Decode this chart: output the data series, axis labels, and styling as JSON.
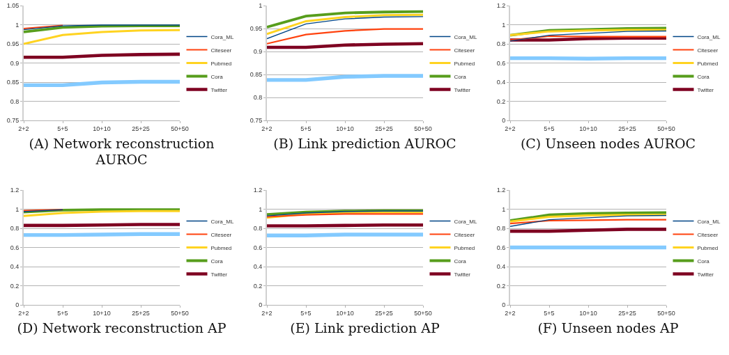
{
  "chart_data": [
    {
      "type": "line",
      "title": "(A) Network reconstruction AUROC",
      "categories": [
        "2+2",
        "5+5",
        "10+10",
        "25+25",
        "50+50"
      ],
      "ylim": [
        0.75,
        1.05
      ],
      "yticks": [
        0.75,
        0.8,
        0.85,
        0.9,
        0.95,
        1,
        1.05
      ],
      "grid": "y",
      "legend": "right",
      "series": [
        {
          "name": "Cora_ML",
          "color": "#004586",
          "values": [
            0.987,
            0.997,
            0.999,
            0.999,
            0.999
          ]
        },
        {
          "name": "Citeseer",
          "color": "#ff420e",
          "values": [
            0.99,
            0.998,
            null,
            null,
            null
          ]
        },
        {
          "name": "Pubmed",
          "color": "#ffd320",
          "values": [
            0.95,
            0.973,
            0.981,
            0.985,
            0.986
          ]
        },
        {
          "name": "Cora",
          "color": "#579d1c",
          "values": [
            0.981,
            0.993,
            0.996,
            0.997,
            0.997
          ]
        },
        {
          "name": "Twitter",
          "color": "#7e0021",
          "values": [
            0.915,
            0.915,
            0.92,
            0.922,
            0.923
          ]
        },
        {
          "color": "#83caff",
          "values": [
            0.842,
            0.842,
            0.849,
            0.851,
            0.851
          ]
        }
      ]
    },
    {
      "type": "line",
      "title": "(B) Link prediction AUROC",
      "categories": [
        "2+2",
        "5+5",
        "10+10",
        "25+25",
        "50+50"
      ],
      "ylim": [
        0.75,
        1
      ],
      "yticks": [
        0.75,
        0.8,
        0.85,
        0.9,
        0.95,
        1
      ],
      "grid": "y",
      "legend": "right",
      "series": [
        {
          "name": "Cora_ML",
          "color": "#004586",
          "values": [
            0.928,
            0.96,
            0.971,
            0.975,
            0.976
          ]
        },
        {
          "name": "Citeseer",
          "color": "#ff420e",
          "values": [
            0.917,
            0.937,
            0.945,
            0.949,
            0.949
          ]
        },
        {
          "name": "Pubmed",
          "color": "#ffd320",
          "values": [
            0.938,
            0.966,
            0.975,
            0.979,
            0.98
          ]
        },
        {
          "name": "Cora",
          "color": "#579d1c",
          "values": [
            0.953,
            0.977,
            0.984,
            0.986,
            0.987
          ]
        },
        {
          "name": "Twitter",
          "color": "#7e0021",
          "values": [
            0.909,
            0.909,
            0.914,
            0.916,
            0.917
          ]
        },
        {
          "color": "#83caff",
          "values": [
            0.838,
            0.838,
            0.845,
            0.847,
            0.847
          ]
        }
      ]
    },
    {
      "type": "line",
      "title": "(C) Unseen nodes AUROC",
      "categories": [
        "2+2",
        "5+5",
        "10+10",
        "25+25",
        "50+50"
      ],
      "ylim": [
        0,
        1.2
      ],
      "yticks": [
        0,
        0.2,
        0.4,
        0.6,
        0.8,
        1,
        1.2
      ],
      "grid": "y",
      "legend": "right",
      "series": [
        {
          "name": "Cora_ML",
          "color": "#004586",
          "values": [
            0.83,
            0.89,
            0.91,
            0.93,
            0.935
          ]
        },
        {
          "name": "Citeseer",
          "color": "#ff420e",
          "values": [
            0.84,
            0.88,
            0.875,
            0.875,
            0.875
          ]
        },
        {
          "name": "Pubmed",
          "color": "#ffd320",
          "values": [
            0.89,
            0.93,
            0.94,
            0.945,
            0.945
          ]
        },
        {
          "name": "Cora",
          "color": "#579d1c",
          "values": [
            0.89,
            0.94,
            0.95,
            0.96,
            0.965
          ]
        },
        {
          "name": "Twitter",
          "color": "#7e0021",
          "values": [
            0.84,
            0.84,
            0.855,
            0.86,
            0.86
          ]
        },
        {
          "color": "#83caff",
          "values": [
            0.65,
            0.65,
            0.645,
            0.65,
            0.65
          ]
        }
      ]
    },
    {
      "type": "line",
      "title": "(D) Network reconstruction AP",
      "categories": [
        "2+2",
        "5+5",
        "10+10",
        "25+25",
        "50+50"
      ],
      "ylim": [
        0,
        1.2
      ],
      "yticks": [
        0,
        0.2,
        0.4,
        0.6,
        0.8,
        1,
        1.2
      ],
      "grid": "y",
      "legend": "right",
      "series": [
        {
          "name": "Cora_ML",
          "color": "#004586",
          "values": [
            0.975,
            0.995,
            null,
            null,
            null
          ]
        },
        {
          "name": "Citeseer",
          "color": "#ff420e",
          "values": [
            0.985,
            0.995,
            null,
            null,
            null
          ]
        },
        {
          "name": "Pubmed",
          "color": "#ffd320",
          "values": [
            0.93,
            0.96,
            0.975,
            0.98,
            0.98
          ]
        },
        {
          "name": "Cora",
          "color": "#579d1c",
          "values": [
            0.97,
            0.99,
            0.995,
            0.995,
            0.995
          ]
        },
        {
          "name": "Twitter",
          "color": "#7e0021",
          "values": [
            0.83,
            0.83,
            0.835,
            0.84,
            0.84
          ]
        },
        {
          "color": "#83caff",
          "values": [
            0.73,
            0.73,
            0.735,
            0.74,
            0.74
          ]
        }
      ]
    },
    {
      "type": "line",
      "title": "(E) Link prediction AP",
      "categories": [
        "2+2",
        "5+5",
        "10+10",
        "25+25",
        "50+50"
      ],
      "ylim": [
        0,
        1.2
      ],
      "yticks": [
        0,
        0.2,
        0.4,
        0.6,
        0.8,
        1,
        1.2
      ],
      "grid": "y",
      "legend": "right",
      "series": [
        {
          "name": "Cora_ML",
          "color": "#004586",
          "values": [
            0.93,
            0.96,
            0.975,
            0.98,
            0.98
          ]
        },
        {
          "name": "Citeseer",
          "color": "#ff420e",
          "values": [
            0.92,
            0.94,
            0.95,
            0.95,
            0.95
          ]
        },
        {
          "name": "Pubmed",
          "color": "#ffd320",
          "values": [
            0.91,
            0.95,
            0.965,
            0.97,
            0.97
          ]
        },
        {
          "name": "Cora",
          "color": "#579d1c",
          "values": [
            0.945,
            0.97,
            0.98,
            0.985,
            0.985
          ]
        },
        {
          "name": "Twitter",
          "color": "#7e0021",
          "values": [
            0.825,
            0.825,
            0.83,
            0.835,
            0.835
          ]
        },
        {
          "color": "#83caff",
          "values": [
            0.725,
            0.725,
            0.735,
            0.735,
            0.735
          ]
        }
      ]
    },
    {
      "type": "line",
      "title": "(F) Unseen nodes AP",
      "categories": [
        "2+2",
        "5+5",
        "10+10",
        "25+25",
        "50+50"
      ],
      "ylim": [
        0,
        1.2
      ],
      "yticks": [
        0,
        0.2,
        0.4,
        0.6,
        0.8,
        1,
        1.2
      ],
      "grid": "y",
      "legend": "right",
      "series": [
        {
          "name": "Cora_ML",
          "color": "#004586",
          "values": [
            0.82,
            0.89,
            0.91,
            0.93,
            0.935
          ]
        },
        {
          "name": "Citeseer",
          "color": "#ff420e",
          "values": [
            0.85,
            0.88,
            0.885,
            0.89,
            0.89
          ]
        },
        {
          "name": "Pubmed",
          "color": "#ffd320",
          "values": [
            0.87,
            0.92,
            0.935,
            0.94,
            0.94
          ]
        },
        {
          "name": "Cora",
          "color": "#579d1c",
          "values": [
            0.88,
            0.94,
            0.955,
            0.96,
            0.965
          ]
        },
        {
          "name": "Twitter",
          "color": "#7e0021",
          "values": [
            0.77,
            0.77,
            0.78,
            0.79,
            0.79
          ]
        },
        {
          "color": "#83caff",
          "values": [
            0.6,
            0.6,
            0.6,
            0.6,
            0.6
          ]
        }
      ]
    }
  ]
}
